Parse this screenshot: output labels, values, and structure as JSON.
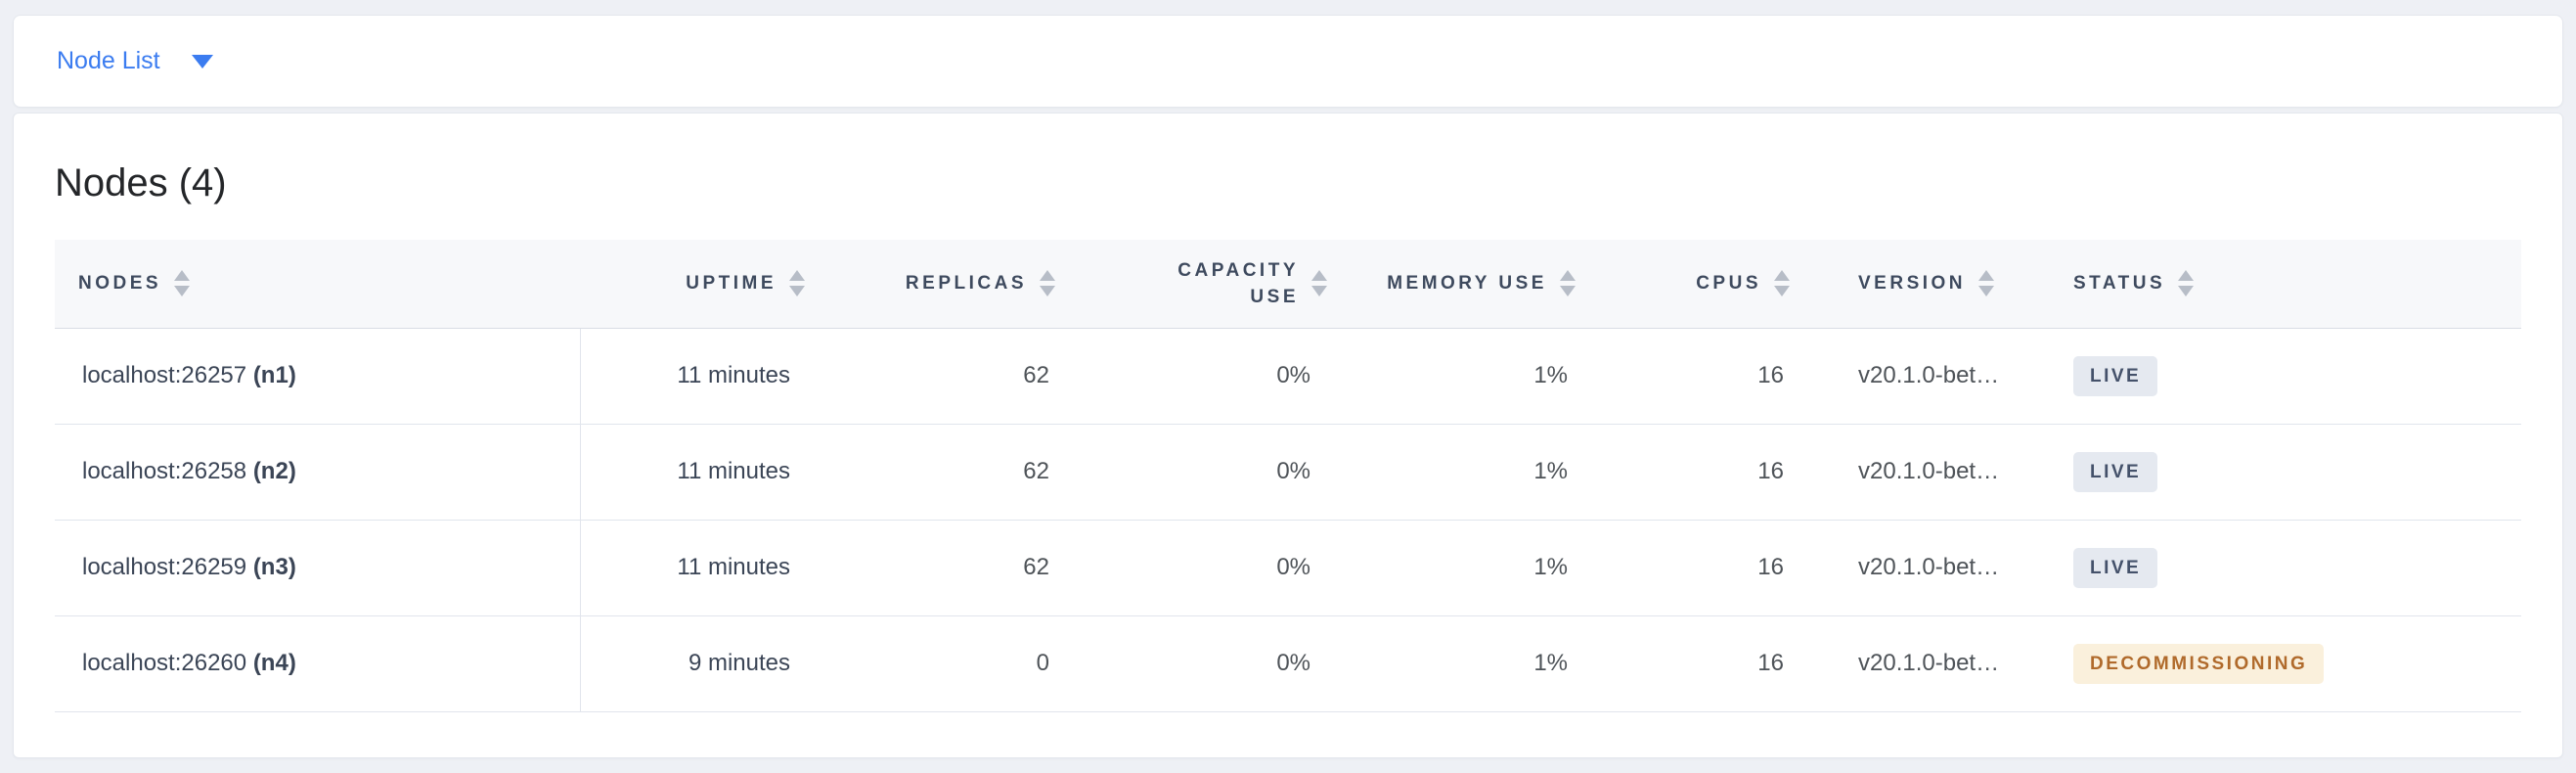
{
  "topbar": {
    "dropdown_label": "Node List"
  },
  "main": {
    "heading": "Nodes (4)"
  },
  "table": {
    "columns": {
      "nodes": "NODES",
      "uptime": "UPTIME",
      "replicas": "REPLICAS",
      "capacity": "CAPACITY USE",
      "memory": "MEMORY USE",
      "cpus": "CPUS",
      "version": "VERSION",
      "status": "STATUS"
    },
    "rows": [
      {
        "address": "localhost:26257",
        "id": "(n1)",
        "uptime": "11 minutes",
        "replicas": "62",
        "capacity": "0%",
        "memory": "1%",
        "cpus": "16",
        "version": "v20.1.0-bet…",
        "status": "LIVE",
        "status_type": "live"
      },
      {
        "address": "localhost:26258",
        "id": "(n2)",
        "uptime": "11 minutes",
        "replicas": "62",
        "capacity": "0%",
        "memory": "1%",
        "cpus": "16",
        "version": "v20.1.0-bet…",
        "status": "LIVE",
        "status_type": "live"
      },
      {
        "address": "localhost:26259",
        "id": "(n3)",
        "uptime": "11 minutes",
        "replicas": "62",
        "capacity": "0%",
        "memory": "1%",
        "cpus": "16",
        "version": "v20.1.0-bet…",
        "status": "LIVE",
        "status_type": "live"
      },
      {
        "address": "localhost:26260",
        "id": "(n4)",
        "uptime": "9 minutes",
        "replicas": "0",
        "capacity": "0%",
        "memory": "1%",
        "cpus": "16",
        "version": "v20.1.0-bet…",
        "status": "DECOMMISSIONING",
        "status_type": "decommissioning"
      }
    ]
  },
  "colors": {
    "accent_blue": "#3b7cf0",
    "page_background": "#eef0f5",
    "header_background": "#f7f8fa",
    "header_text": "#3e4a5e",
    "row_border": "#e1e5ec",
    "live_badge_bg": "#e5e9f0",
    "live_badge_text": "#44516a",
    "decommissioning_badge_bg": "#faf0dc",
    "decommissioning_badge_text": "#b06a2b"
  }
}
